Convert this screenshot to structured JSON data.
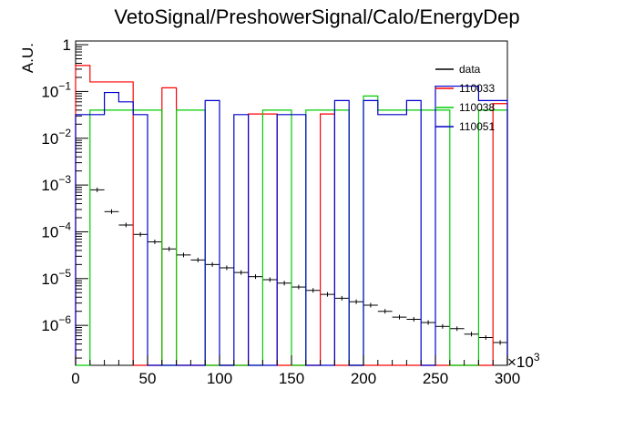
{
  "chart_data": {
    "type": "histogram",
    "title": "VetoSignal/PreshowerSignal/Calo/EnergyDep",
    "xlabel": "",
    "ylabel": "A.U.",
    "x_multiplier_label": "×10",
    "x_multiplier_exponent": "3",
    "xlim": [
      0,
      300
    ],
    "ylim": [
      1.4e-07,
      1.2
    ],
    "yscale": "log",
    "x_ticks": [
      "0",
      "50",
      "100",
      "150",
      "200",
      "250",
      "300"
    ],
    "y_ticks": [
      {
        "value": 1,
        "label": "1",
        "exp": ""
      },
      {
        "value": 0.1,
        "label": "10",
        "exp": "−1"
      },
      {
        "value": 0.01,
        "label": "10",
        "exp": "−2"
      },
      {
        "value": 0.001,
        "label": "10",
        "exp": "−3"
      },
      {
        "value": 0.0001,
        "label": "10",
        "exp": "−4"
      },
      {
        "value": 1e-05,
        "label": "10",
        "exp": "−5"
      },
      {
        "value": 1e-06,
        "label": "10",
        "exp": "−6"
      }
    ],
    "bin_edges": [
      0,
      10,
      20,
      30,
      40,
      50,
      60,
      70,
      80,
      90,
      100,
      110,
      120,
      130,
      140,
      150,
      160,
      170,
      180,
      190,
      200,
      210,
      220,
      230,
      240,
      250,
      260,
      270,
      280,
      290,
      300
    ],
    "legend_position": "top-right",
    "series": [
      {
        "name": "data",
        "color": "#000000",
        "style": "points",
        "values": [
          0.0,
          0.00079,
          0.00027,
          0.00014,
          8.8e-05,
          6.1e-05,
          4.3e-05,
          3.2e-05,
          2.5e-05,
          2e-05,
          1.7e-05,
          1.35e-05,
          1.1e-05,
          9.5e-06,
          8e-06,
          6.6e-06,
          5.6e-06,
          4.6e-06,
          3.8e-06,
          3.2e-06,
          2.7e-06,
          2e-06,
          1.5e-06,
          1.35e-06,
          1.15e-06,
          9.5e-07,
          8.5e-07,
          6.5e-07,
          5.5e-07,
          4.3e-07
        ]
      },
      {
        "name": "110033",
        "color": "#ff0000",
        "style": "step",
        "values": [
          0.36,
          0.16,
          0.16,
          0.16,
          0,
          0,
          0.12,
          0,
          0,
          0,
          0,
          0,
          0.033,
          0.033,
          0,
          0,
          0,
          0.033,
          0,
          0,
          0,
          0,
          0,
          0,
          0,
          0,
          0,
          0,
          0,
          0.055
        ]
      },
      {
        "name": "110038",
        "color": "#00cc00",
        "style": "step",
        "values": [
          0,
          0.04,
          0.04,
          0.04,
          0.04,
          0.04,
          0,
          0.04,
          0.04,
          0,
          0,
          0,
          0,
          0.04,
          0.04,
          0,
          0.04,
          0.04,
          0.04,
          0,
          0.08,
          0.04,
          0.04,
          0.04,
          0.04,
          0.04,
          0,
          0,
          0.04,
          0.04
        ]
      },
      {
        "name": "110051",
        "color": "#0000cc",
        "style": "step",
        "values": [
          0.032,
          0.032,
          0.095,
          0.06,
          0.032,
          0,
          0,
          0,
          0,
          0.064,
          0,
          0.032,
          0,
          0,
          0.032,
          0.032,
          0,
          0,
          0.064,
          0,
          0.064,
          0.032,
          0.032,
          0.064,
          0,
          0.13,
          0.13,
          0.13,
          0.064,
          0.064
        ]
      }
    ]
  }
}
